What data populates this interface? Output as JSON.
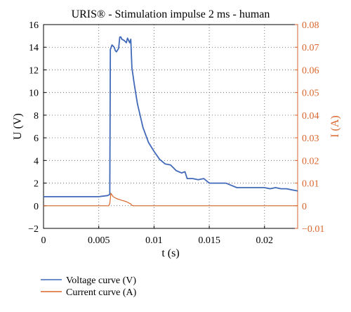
{
  "chart_data": {
    "type": "line",
    "title": "URIS® - Stimulation impulse 2 ms - human",
    "xlabel": "t (s)",
    "ylabel_left": "U (V)",
    "ylabel_right": "I (A)",
    "xlim": [
      0,
      0.023
    ],
    "ylim_left": [
      -2,
      16
    ],
    "ylim_right": [
      -0.01,
      0.08
    ],
    "x_ticks": [
      0,
      0.005,
      0.01,
      0.015,
      0.02
    ],
    "x_tick_labels": [
      "0",
      "0.005",
      "0.01",
      "0.015",
      "0.02"
    ],
    "y_left_ticks": [
      -2,
      0,
      2,
      4,
      6,
      8,
      10,
      12,
      14,
      16
    ],
    "y_left_tick_labels": [
      "−2",
      "0",
      "2",
      "4",
      "6",
      "8",
      "10",
      "12",
      "14",
      "16"
    ],
    "y_right_ticks": [
      -0.01,
      0,
      0.01,
      0.02,
      0.03,
      0.04,
      0.05,
      0.06,
      0.07,
      0.08
    ],
    "y_right_tick_labels": [
      "−0.01",
      "0",
      "0.01",
      "0.02",
      "0.03",
      "0.04",
      "0.05",
      "0.06",
      "0.07",
      "0.08"
    ],
    "grid": "dotted",
    "legend_position": "bottom-left",
    "series": [
      {
        "name": "Voltage curve (V)",
        "axis": "left",
        "color": "#4169b8",
        "x": [
          0,
          0.001,
          0.002,
          0.003,
          0.004,
          0.005,
          0.0058,
          0.006,
          0.00605,
          0.0062,
          0.0064,
          0.0065,
          0.0066,
          0.0068,
          0.0069,
          0.007,
          0.0071,
          0.0073,
          0.0075,
          0.0076,
          0.0078,
          0.0079,
          0.008,
          0.0082,
          0.0085,
          0.009,
          0.0095,
          0.01,
          0.0105,
          0.011,
          0.0115,
          0.012,
          0.0125,
          0.0128,
          0.013,
          0.0135,
          0.014,
          0.0145,
          0.015,
          0.0155,
          0.016,
          0.0165,
          0.017,
          0.0175,
          0.018,
          0.0185,
          0.019,
          0.0195,
          0.02,
          0.0205,
          0.021,
          0.0215,
          0.022,
          0.0225,
          0.023
        ],
        "values": [
          0.8,
          0.8,
          0.8,
          0.8,
          0.8,
          0.8,
          0.9,
          1.0,
          13.8,
          14.2,
          14.0,
          13.7,
          13.6,
          13.9,
          14.9,
          14.9,
          14.7,
          14.6,
          14.4,
          14.8,
          14.4,
          14.7,
          12.2,
          10.8,
          9.0,
          6.9,
          5.6,
          4.8,
          4.1,
          3.7,
          3.6,
          3.1,
          2.9,
          3.0,
          2.4,
          2.4,
          2.3,
          2.4,
          2.0,
          2.0,
          2.0,
          2.0,
          1.8,
          1.6,
          1.6,
          1.6,
          1.6,
          1.6,
          1.6,
          1.5,
          1.6,
          1.5,
          1.5,
          1.4,
          1.3
        ]
      },
      {
        "name": "Current curve (A)",
        "axis": "right",
        "color": "#d9662c",
        "x": [
          0,
          0.001,
          0.002,
          0.003,
          0.004,
          0.005,
          0.0059,
          0.006,
          0.0061,
          0.0063,
          0.0066,
          0.007,
          0.0075,
          0.0079,
          0.008,
          0.0081,
          0.0085,
          0.009,
          0.01,
          0.012,
          0.014,
          0.016,
          0.018,
          0.02,
          0.022,
          0.023
        ],
        "values": [
          0,
          0,
          0,
          0,
          0,
          0,
          0,
          0.001,
          0.0055,
          0.004,
          0.0032,
          0.0025,
          0.0018,
          0.0008,
          0.0002,
          0,
          0,
          0,
          0,
          0,
          0,
          0,
          0,
          0,
          0,
          0
        ]
      }
    ]
  }
}
